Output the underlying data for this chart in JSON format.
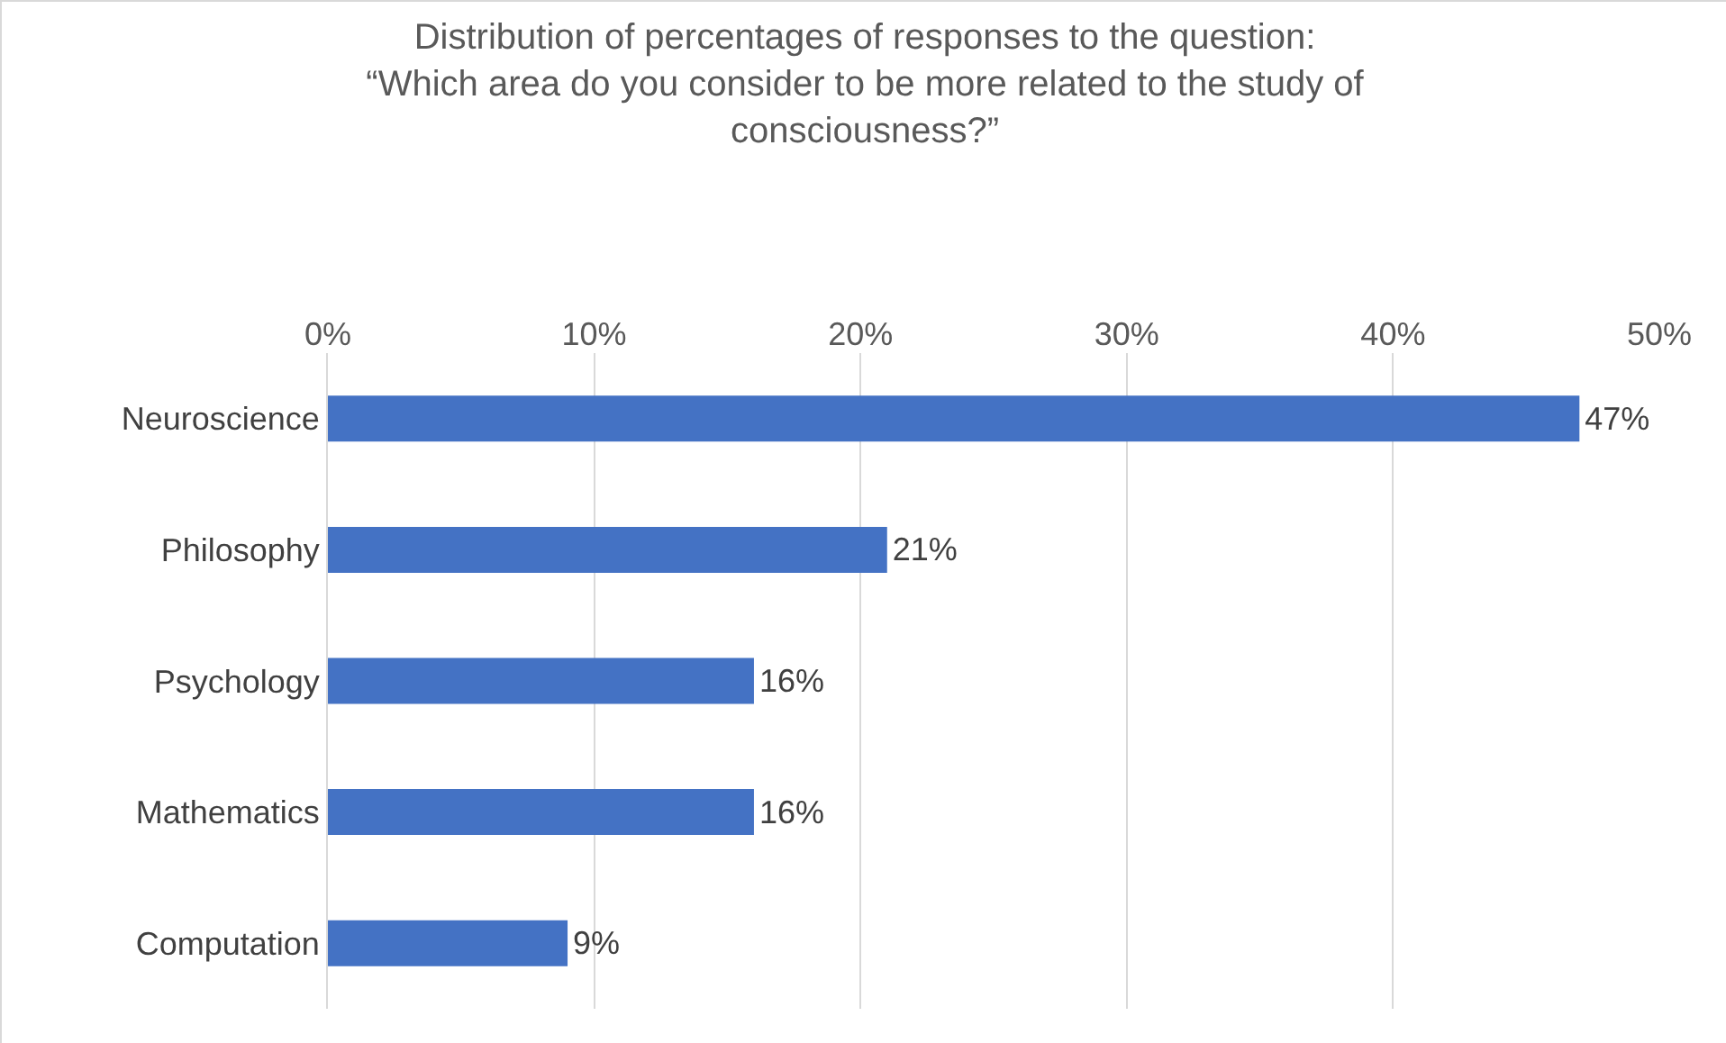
{
  "chart_data": {
    "type": "bar",
    "orientation": "horizontal",
    "title": "Distribution of percentages of responses to the question: “Which area do you consider to be more related to the study of consciousness?”",
    "categories": [
      "Neuroscience",
      "Philosophy",
      "Psychology",
      "Mathematics",
      "Computation"
    ],
    "values": [
      47,
      21,
      16,
      16,
      9
    ],
    "value_labels": [
      "47%",
      "21%",
      "16%",
      "16%",
      "9%"
    ],
    "color": "#4472c4",
    "xlim": [
      0,
      50
    ],
    "xticks": [
      {
        "value": 0,
        "label": "0%"
      },
      {
        "value": 10,
        "label": "10%"
      },
      {
        "value": 20,
        "label": "20%"
      },
      {
        "value": 30,
        "label": "30%"
      },
      {
        "value": 40,
        "label": "40%"
      },
      {
        "value": 50,
        "label": "50%"
      }
    ],
    "grid": "x"
  }
}
